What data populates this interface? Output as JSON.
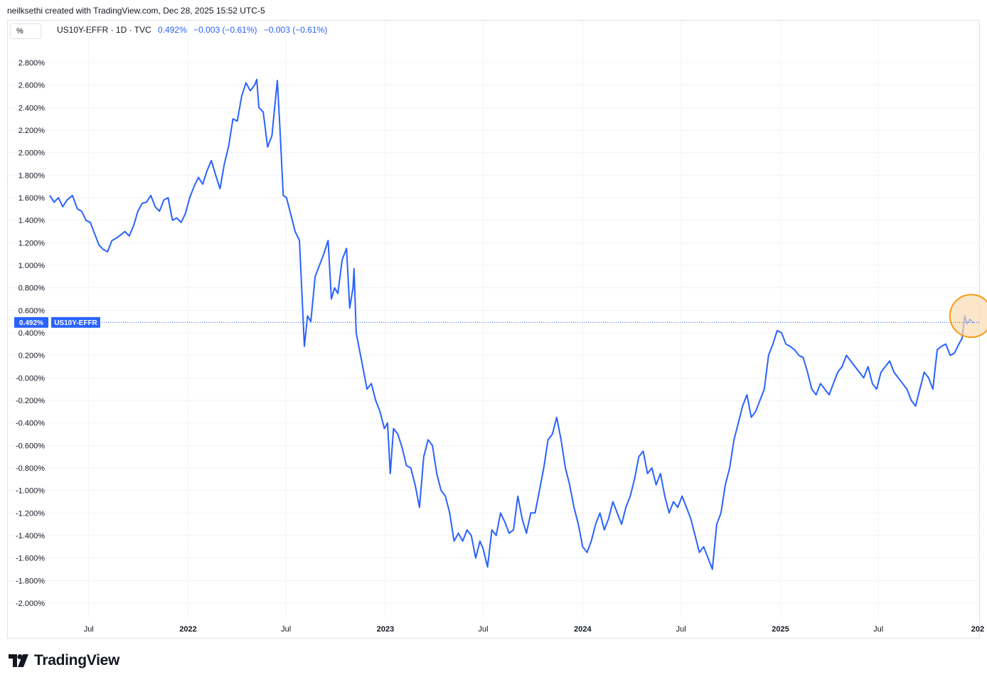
{
  "header": {
    "credit": "neilksethi created with TradingView.com, Dec 28, 2025 15:52 UTC-5"
  },
  "toolbar": {
    "unit_label": "%"
  },
  "legend": {
    "symbol": "US10Y-EFFR · 1D · TVC",
    "last_value": "0.492%",
    "change_1": "−0.003 (−0.61%)",
    "change_2": "−0.003 (−0.61%)"
  },
  "price_badge": {
    "value": "0.492%",
    "name": "US10Y-EFFR"
  },
  "brand": {
    "name": "TradingView"
  },
  "colors": {
    "line": "#2962ff",
    "grid": "#f0f3fa",
    "highlight_fill": "#fbdcb4",
    "highlight_stroke": "#f39c12"
  },
  "chart_data": {
    "type": "line",
    "title": "",
    "xlabel": "",
    "ylabel": "",
    "ylim": [
      -2.0,
      2.8
    ],
    "xlim": [
      "2021-04-20",
      "2026-01-05"
    ],
    "y_ticks": [
      2.8,
      2.6,
      2.4,
      2.2,
      2.0,
      1.8,
      1.6,
      1.4,
      1.2,
      1.0,
      0.8,
      0.6,
      0.4,
      0.2,
      0.0,
      -0.2,
      -0.4,
      -0.6,
      -0.8,
      -1.0,
      -1.2,
      -1.4,
      -1.6,
      -1.8,
      -2.0
    ],
    "y_tick_labels": [
      "2.800%",
      "2.600%",
      "2.400%",
      "2.200%",
      "2.000%",
      "1.800%",
      "1.600%",
      "1.400%",
      "1.200%",
      "1.000%",
      "0.800%",
      "0.600%",
      "0.400%",
      "0.200%",
      "-0.000%",
      "-0.200%",
      "-0.400%",
      "-0.600%",
      "-0.800%",
      "-1.000%",
      "-1.200%",
      "-1.400%",
      "-1.600%",
      "-1.800%",
      "-2.000%"
    ],
    "x_ticks": [
      {
        "label": "Jul",
        "date": "2021-07-01",
        "year": false
      },
      {
        "label": "2022",
        "date": "2022-01-01",
        "year": true
      },
      {
        "label": "Jul",
        "date": "2022-07-01",
        "year": false
      },
      {
        "label": "2023",
        "date": "2023-01-01",
        "year": true
      },
      {
        "label": "Jul",
        "date": "2023-07-01",
        "year": false
      },
      {
        "label": "2024",
        "date": "2024-01-01",
        "year": true
      },
      {
        "label": "Jul",
        "date": "2024-07-01",
        "year": false
      },
      {
        "label": "2025",
        "date": "2025-01-01",
        "year": true
      },
      {
        "label": "Jul",
        "date": "2025-07-01",
        "year": false
      },
      {
        "label": "202",
        "date": "2026-01-01",
        "year": true
      }
    ],
    "last_value": 0.492,
    "highlight": {
      "date": "2025-12-20",
      "value": 0.55
    },
    "series": [
      {
        "points": [
          [
            "2021-04-20",
            1.62
          ],
          [
            "2021-04-28",
            1.56
          ],
          [
            "2021-05-06",
            1.6
          ],
          [
            "2021-05-14",
            1.52
          ],
          [
            "2021-05-22",
            1.58
          ],
          [
            "2021-06-01",
            1.62
          ],
          [
            "2021-06-10",
            1.5
          ],
          [
            "2021-06-18",
            1.48
          ],
          [
            "2021-06-26",
            1.4
          ],
          [
            "2021-07-04",
            1.38
          ],
          [
            "2021-07-12",
            1.28
          ],
          [
            "2021-07-20",
            1.18
          ],
          [
            "2021-07-28",
            1.14
          ],
          [
            "2021-08-05",
            1.12
          ],
          [
            "2021-08-13",
            1.22
          ],
          [
            "2021-08-21",
            1.24
          ],
          [
            "2021-08-29",
            1.27
          ],
          [
            "2021-09-06",
            1.3
          ],
          [
            "2021-09-14",
            1.26
          ],
          [
            "2021-09-22",
            1.35
          ],
          [
            "2021-09-30",
            1.48
          ],
          [
            "2021-10-08",
            1.55
          ],
          [
            "2021-10-16",
            1.56
          ],
          [
            "2021-10-24",
            1.62
          ],
          [
            "2021-11-01",
            1.52
          ],
          [
            "2021-11-09",
            1.48
          ],
          [
            "2021-11-17",
            1.58
          ],
          [
            "2021-11-25",
            1.6
          ],
          [
            "2021-12-03",
            1.4
          ],
          [
            "2021-12-11",
            1.42
          ],
          [
            "2021-12-19",
            1.38
          ],
          [
            "2021-12-27",
            1.46
          ],
          [
            "2022-01-04",
            1.6
          ],
          [
            "2022-01-12",
            1.7
          ],
          [
            "2022-01-20",
            1.78
          ],
          [
            "2022-01-28",
            1.72
          ],
          [
            "2022-02-05",
            1.84
          ],
          [
            "2022-02-13",
            1.93
          ],
          [
            "2022-02-21",
            1.8
          ],
          [
            "2022-03-01",
            1.68
          ],
          [
            "2022-03-09",
            1.9
          ],
          [
            "2022-03-17",
            2.06
          ],
          [
            "2022-03-25",
            2.3
          ],
          [
            "2022-04-02",
            2.28
          ],
          [
            "2022-04-10",
            2.5
          ],
          [
            "2022-04-18",
            2.62
          ],
          [
            "2022-04-26",
            2.55
          ],
          [
            "2022-05-04",
            2.6
          ],
          [
            "2022-05-08",
            2.65
          ],
          [
            "2022-05-12",
            2.4
          ],
          [
            "2022-05-20",
            2.36
          ],
          [
            "2022-05-28",
            2.05
          ],
          [
            "2022-06-05",
            2.15
          ],
          [
            "2022-06-10",
            2.4
          ],
          [
            "2022-06-15",
            2.64
          ],
          [
            "2022-06-20",
            2.2
          ],
          [
            "2022-06-26",
            1.62
          ],
          [
            "2022-07-02",
            1.6
          ],
          [
            "2022-07-10",
            1.45
          ],
          [
            "2022-07-18",
            1.3
          ],
          [
            "2022-07-26",
            1.22
          ],
          [
            "2022-08-01",
            0.6
          ],
          [
            "2022-08-04",
            0.28
          ],
          [
            "2022-08-10",
            0.55
          ],
          [
            "2022-08-16",
            0.5
          ],
          [
            "2022-08-24",
            0.9
          ],
          [
            "2022-09-01",
            1.0
          ],
          [
            "2022-09-09",
            1.1
          ],
          [
            "2022-09-17",
            1.22
          ],
          [
            "2022-09-23",
            0.7
          ],
          [
            "2022-09-29",
            0.8
          ],
          [
            "2022-10-05",
            0.75
          ],
          [
            "2022-10-13",
            1.05
          ],
          [
            "2022-10-21",
            1.15
          ],
          [
            "2022-10-27",
            0.62
          ],
          [
            "2022-11-02",
            0.8
          ],
          [
            "2022-11-04",
            0.97
          ],
          [
            "2022-11-08",
            0.4
          ],
          [
            "2022-11-14",
            0.25
          ],
          [
            "2022-11-20",
            0.1
          ],
          [
            "2022-11-28",
            -0.1
          ],
          [
            "2022-12-06",
            -0.05
          ],
          [
            "2022-12-14",
            -0.2
          ],
          [
            "2022-12-22",
            -0.3
          ],
          [
            "2022-12-30",
            -0.45
          ],
          [
            "2023-01-05",
            -0.4
          ],
          [
            "2023-01-10",
            -0.85
          ],
          [
            "2023-01-16",
            -0.45
          ],
          [
            "2023-01-24",
            -0.5
          ],
          [
            "2023-02-01",
            -0.62
          ],
          [
            "2023-02-09",
            -0.78
          ],
          [
            "2023-02-17",
            -0.8
          ],
          [
            "2023-02-25",
            -0.95
          ],
          [
            "2023-03-05",
            -1.15
          ],
          [
            "2023-03-13",
            -0.7
          ],
          [
            "2023-03-21",
            -0.55
          ],
          [
            "2023-03-29",
            -0.6
          ],
          [
            "2023-04-06",
            -0.85
          ],
          [
            "2023-04-14",
            -1.0
          ],
          [
            "2023-04-22",
            -1.05
          ],
          [
            "2023-04-30",
            -1.2
          ],
          [
            "2023-05-08",
            -1.45
          ],
          [
            "2023-05-16",
            -1.38
          ],
          [
            "2023-05-24",
            -1.45
          ],
          [
            "2023-06-01",
            -1.35
          ],
          [
            "2023-06-09",
            -1.4
          ],
          [
            "2023-06-17",
            -1.6
          ],
          [
            "2023-06-25",
            -1.45
          ],
          [
            "2023-07-01",
            -1.52
          ],
          [
            "2023-07-09",
            -1.68
          ],
          [
            "2023-07-17",
            -1.35
          ],
          [
            "2023-07-25",
            -1.4
          ],
          [
            "2023-08-02",
            -1.2
          ],
          [
            "2023-08-10",
            -1.28
          ],
          [
            "2023-08-18",
            -1.38
          ],
          [
            "2023-08-26",
            -1.35
          ],
          [
            "2023-09-03",
            -1.05
          ],
          [
            "2023-09-11",
            -1.25
          ],
          [
            "2023-09-19",
            -1.38
          ],
          [
            "2023-09-27",
            -1.2
          ],
          [
            "2023-10-05",
            -1.2
          ],
          [
            "2023-10-13",
            -1.0
          ],
          [
            "2023-10-21",
            -0.8
          ],
          [
            "2023-10-29",
            -0.55
          ],
          [
            "2023-11-06",
            -0.5
          ],
          [
            "2023-11-14",
            -0.35
          ],
          [
            "2023-11-22",
            -0.55
          ],
          [
            "2023-11-30",
            -0.8
          ],
          [
            "2023-12-08",
            -0.95
          ],
          [
            "2023-12-16",
            -1.15
          ],
          [
            "2023-12-24",
            -1.3
          ],
          [
            "2024-01-01",
            -1.5
          ],
          [
            "2024-01-09",
            -1.55
          ],
          [
            "2024-01-17",
            -1.45
          ],
          [
            "2024-01-25",
            -1.3
          ],
          [
            "2024-02-02",
            -1.2
          ],
          [
            "2024-02-10",
            -1.35
          ],
          [
            "2024-02-18",
            -1.25
          ],
          [
            "2024-02-26",
            -1.1
          ],
          [
            "2024-03-05",
            -1.2
          ],
          [
            "2024-03-13",
            -1.3
          ],
          [
            "2024-03-21",
            -1.15
          ],
          [
            "2024-03-29",
            -1.05
          ],
          [
            "2024-04-06",
            -0.9
          ],
          [
            "2024-04-14",
            -0.7
          ],
          [
            "2024-04-22",
            -0.65
          ],
          [
            "2024-04-30",
            -0.85
          ],
          [
            "2024-05-08",
            -0.8
          ],
          [
            "2024-05-16",
            -0.95
          ],
          [
            "2024-05-24",
            -0.85
          ],
          [
            "2024-06-01",
            -1.05
          ],
          [
            "2024-06-09",
            -1.2
          ],
          [
            "2024-06-17",
            -1.1
          ],
          [
            "2024-06-25",
            -1.15
          ],
          [
            "2024-07-03",
            -1.05
          ],
          [
            "2024-07-11",
            -1.15
          ],
          [
            "2024-07-19",
            -1.25
          ],
          [
            "2024-07-27",
            -1.4
          ],
          [
            "2024-08-04",
            -1.55
          ],
          [
            "2024-08-12",
            -1.5
          ],
          [
            "2024-08-20",
            -1.6
          ],
          [
            "2024-08-28",
            -1.7
          ],
          [
            "2024-09-05",
            -1.3
          ],
          [
            "2024-09-13",
            -1.2
          ],
          [
            "2024-09-21",
            -0.95
          ],
          [
            "2024-09-29",
            -0.8
          ],
          [
            "2024-10-07",
            -0.55
          ],
          [
            "2024-10-15",
            -0.4
          ],
          [
            "2024-10-23",
            -0.25
          ],
          [
            "2024-10-31",
            -0.15
          ],
          [
            "2024-11-08",
            -0.35
          ],
          [
            "2024-11-16",
            -0.3
          ],
          [
            "2024-11-24",
            -0.2
          ],
          [
            "2024-12-02",
            -0.1
          ],
          [
            "2024-12-10",
            0.2
          ],
          [
            "2024-12-18",
            0.3
          ],
          [
            "2024-12-26",
            0.42
          ],
          [
            "2025-01-03",
            0.4
          ],
          [
            "2025-01-11",
            0.3
          ],
          [
            "2025-01-19",
            0.28
          ],
          [
            "2025-01-27",
            0.25
          ],
          [
            "2025-02-04",
            0.2
          ],
          [
            "2025-02-12",
            0.18
          ],
          [
            "2025-02-20",
            0.05
          ],
          [
            "2025-02-28",
            -0.1
          ],
          [
            "2025-03-08",
            -0.15
          ],
          [
            "2025-03-16",
            -0.05
          ],
          [
            "2025-03-24",
            -0.1
          ],
          [
            "2025-04-01",
            -0.15
          ],
          [
            "2025-04-09",
            -0.05
          ],
          [
            "2025-04-17",
            0.05
          ],
          [
            "2025-04-25",
            0.1
          ],
          [
            "2025-05-03",
            0.2
          ],
          [
            "2025-05-11",
            0.15
          ],
          [
            "2025-05-19",
            0.1
          ],
          [
            "2025-05-27",
            0.05
          ],
          [
            "2025-06-04",
            0.0
          ],
          [
            "2025-06-12",
            0.1
          ],
          [
            "2025-06-20",
            -0.05
          ],
          [
            "2025-06-28",
            -0.1
          ],
          [
            "2025-07-06",
            0.05
          ],
          [
            "2025-07-14",
            0.1
          ],
          [
            "2025-07-22",
            0.15
          ],
          [
            "2025-07-30",
            0.05
          ],
          [
            "2025-08-07",
            0.0
          ],
          [
            "2025-08-15",
            -0.05
          ],
          [
            "2025-08-23",
            -0.1
          ],
          [
            "2025-08-31",
            -0.2
          ],
          [
            "2025-09-08",
            -0.25
          ],
          [
            "2025-09-16",
            -0.1
          ],
          [
            "2025-09-24",
            0.05
          ],
          [
            "2025-10-02",
            0.0
          ],
          [
            "2025-10-10",
            -0.1
          ],
          [
            "2025-10-18",
            0.25
          ],
          [
            "2025-10-26",
            0.28
          ],
          [
            "2025-11-03",
            0.3
          ],
          [
            "2025-11-11",
            0.2
          ],
          [
            "2025-11-19",
            0.22
          ],
          [
            "2025-11-27",
            0.3
          ],
          [
            "2025-12-03",
            0.35
          ],
          [
            "2025-12-08",
            0.55
          ],
          [
            "2025-12-12",
            0.48
          ],
          [
            "2025-12-18",
            0.52
          ],
          [
            "2025-12-23",
            0.49
          ],
          [
            "2025-12-26",
            0.492
          ]
        ]
      }
    ]
  }
}
